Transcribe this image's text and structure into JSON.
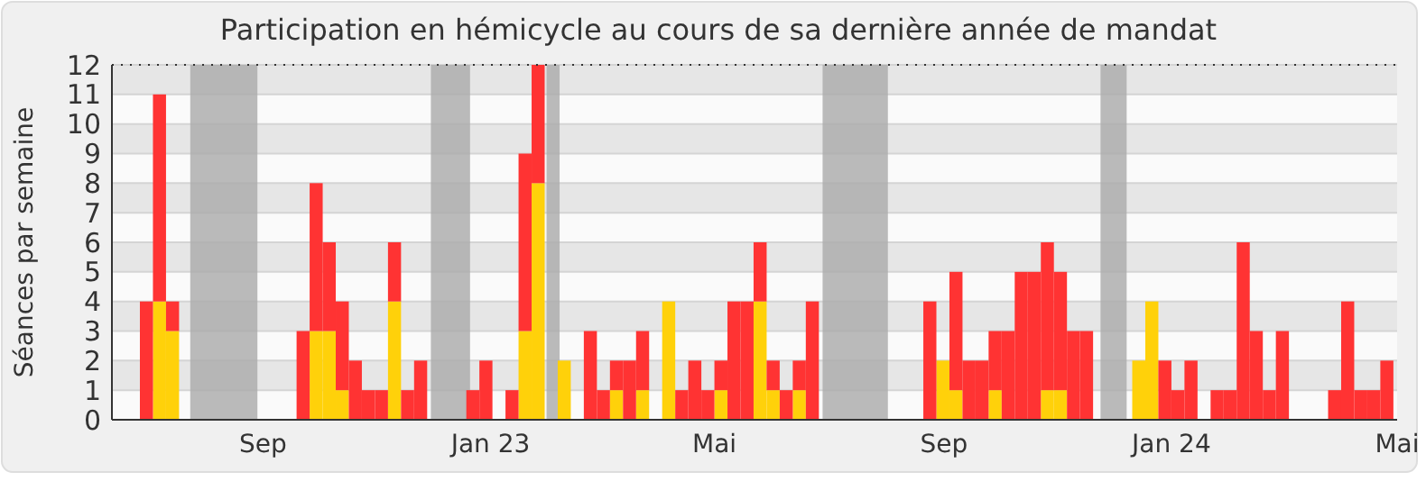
{
  "chart_data": {
    "type": "bar",
    "title": "Participation en hémicycle au cours de sa dernière année de mandat",
    "ylabel": "Séances par semaine",
    "x": [
      "2022-06-27",
      "2022-07-04",
      "2022-07-11",
      "2022-09-19",
      "2022-09-26",
      "2022-10-03",
      "2022-10-10",
      "2022-10-17",
      "2022-10-24",
      "2022-10-31",
      "2022-11-07",
      "2022-11-14",
      "2022-11-21",
      "2022-12-19",
      "2022-12-26",
      "2023-01-09",
      "2023-01-16",
      "2023-01-23",
      "2023-02-06",
      "2023-02-20",
      "2023-02-27",
      "2023-03-06",
      "2023-03-13",
      "2023-03-20",
      "2023-04-03",
      "2023-04-10",
      "2023-04-17",
      "2023-04-24",
      "2023-05-01",
      "2023-05-08",
      "2023-05-15",
      "2023-05-22",
      "2023-05-29",
      "2023-06-05",
      "2023-06-12",
      "2023-06-19",
      "2023-08-21",
      "2023-08-28",
      "2023-09-04",
      "2023-09-11",
      "2023-09-18",
      "2023-09-25",
      "2023-10-02",
      "2023-10-09",
      "2023-10-16",
      "2023-10-23",
      "2023-10-30",
      "2023-11-06",
      "2023-11-13",
      "2023-12-11",
      "2023-12-18",
      "2023-12-25",
      "2024-01-01",
      "2024-01-08",
      "2024-01-22",
      "2024-01-29",
      "2024-02-05",
      "2024-02-12",
      "2024-02-19",
      "2024-02-26",
      "2024-03-25",
      "2024-04-01",
      "2024-04-08",
      "2024-04-15",
      "2024-04-22"
    ],
    "series": [
      {
        "color": "#ffd10a",
        "values": [
          null,
          4,
          3,
          null,
          3,
          3,
          1,
          null,
          null,
          null,
          4,
          null,
          null,
          null,
          null,
          null,
          3,
          8,
          2,
          null,
          null,
          1,
          null,
          1,
          4,
          null,
          null,
          null,
          1,
          null,
          null,
          4,
          1,
          null,
          1,
          null,
          null,
          2,
          1,
          null,
          null,
          1,
          null,
          null,
          null,
          1,
          1,
          null,
          null,
          2,
          4,
          null,
          null,
          null,
          null,
          null,
          null,
          null,
          null,
          null,
          null,
          null,
          null,
          null,
          null
        ]
      },
      {
        "color": "#ff3333",
        "values": [
          4,
          7,
          1,
          3,
          5,
          3,
          3,
          2,
          1,
          1,
          2,
          1,
          2,
          1,
          2,
          1,
          6,
          4,
          null,
          3,
          1,
          1,
          2,
          2,
          null,
          1,
          2,
          1,
          1,
          4,
          4,
          2,
          1,
          1,
          1,
          4,
          4,
          null,
          4,
          2,
          2,
          2,
          3,
          5,
          5,
          5,
          4,
          3,
          3,
          null,
          null,
          2,
          1,
          2,
          1,
          1,
          6,
          3,
          1,
          3,
          1,
          4,
          1,
          1,
          2
        ]
      }
    ],
    "bands": [
      {
        "axis": "x",
        "from": "2022-07-24",
        "to": "2022-08-29",
        "color": "#aaaaaa"
      },
      {
        "axis": "x",
        "from": "2022-11-30",
        "to": "2022-12-21",
        "color": "#aaaaaa"
      },
      {
        "axis": "x",
        "from": "2023-01-31",
        "to": "2023-02-07",
        "color": "#aaaaaa"
      },
      {
        "axis": "x",
        "from": "2023-06-28",
        "to": "2023-08-02",
        "color": "#aaaaaa"
      },
      {
        "axis": "x",
        "from": "2023-11-24",
        "to": "2023-12-08",
        "color": "#aaaaaa"
      }
    ],
    "xlim": [
      "2022-06-12",
      "2024-05-01"
    ],
    "xticks": [
      {
        "value": "2022-09-01",
        "label": "Sep"
      },
      {
        "value": "2023-01-01",
        "label": "Jan 23"
      },
      {
        "value": "2023-05-01",
        "label": "Mai"
      },
      {
        "value": "2023-09-01",
        "label": "Sep"
      },
      {
        "value": "2024-01-01",
        "label": "Jan 24"
      },
      {
        "value": "2024-05-01",
        "label": "Mai"
      }
    ],
    "ylim": [
      0,
      12
    ],
    "yticks": [
      0,
      1,
      2,
      3,
      4,
      5,
      6,
      7,
      8,
      9,
      10,
      11,
      12
    ],
    "grid": "y",
    "stacked": true
  }
}
